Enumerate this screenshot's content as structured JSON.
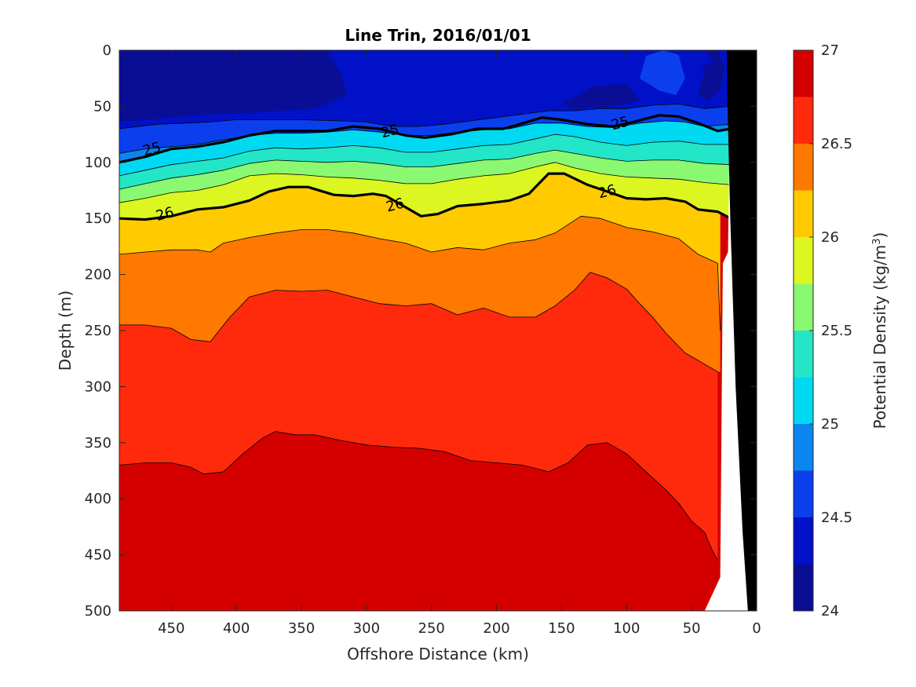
{
  "chart_data": {
    "type": "contourf",
    "title": "Line Trin, 2016/01/01",
    "xlabel": "Offshore Distance (km)",
    "ylabel": "Depth (m)",
    "colorbar_label": "Potential Density (kg/m3)",
    "x_reversed": true,
    "xlim": [
      490,
      0
    ],
    "ylim": [
      0,
      500
    ],
    "y_reversed": true,
    "xticks": [
      450,
      400,
      350,
      300,
      250,
      200,
      150,
      100,
      50,
      0
    ],
    "yticks": [
      0,
      50,
      100,
      150,
      200,
      250,
      300,
      350,
      400,
      450,
      500
    ],
    "colorbar_range": [
      24,
      27
    ],
    "colorbar_ticks": [
      24,
      24.5,
      25,
      25.5,
      26,
      26.5,
      27
    ],
    "levels": [
      24,
      24.25,
      24.5,
      24.75,
      25,
      25.25,
      25.5,
      25.75,
      26,
      26.25,
      26.5,
      26.75,
      27
    ],
    "level_colors": [
      "#0a0e94",
      "#0011c7",
      "#0b3fee",
      "#0a86ee",
      "#00d9f2",
      "#22e6c7",
      "#8af870",
      "#dcf622",
      "#ffcb00",
      "#ff7800",
      "#ff2a0c",
      "#d40000"
    ],
    "contour_labels": [
      {
        "value": "25",
        "x": 465,
        "y": 88
      },
      {
        "value": "25",
        "x": 282,
        "y": 72
      },
      {
        "value": "25",
        "x": 105,
        "y": 65
      },
      {
        "value": "26",
        "x": 455,
        "y": 146
      },
      {
        "value": "26",
        "x": 278,
        "y": 138
      },
      {
        "value": "26",
        "x": 115,
        "y": 126
      }
    ],
    "isopycnals": {
      "24.5": [
        [
          490,
          70
        ],
        [
          460,
          66
        ],
        [
          440,
          65
        ],
        [
          420,
          64
        ],
        [
          400,
          62
        ],
        [
          380,
          62
        ],
        [
          350,
          62
        ],
        [
          320,
          63
        ],
        [
          300,
          64
        ],
        [
          280,
          68
        ],
        [
          260,
          68
        ],
        [
          240,
          66
        ],
        [
          220,
          63
        ],
        [
          200,
          60
        ],
        [
          180,
          57
        ],
        [
          160,
          54
        ],
        [
          140,
          54
        ],
        [
          120,
          52
        ],
        [
          100,
          52
        ],
        [
          80,
          49
        ],
        [
          60,
          48
        ],
        [
          40,
          52
        ],
        [
          20,
          50
        ]
      ],
      "24.75": [
        [
          490,
          92
        ],
        [
          470,
          88
        ],
        [
          450,
          86
        ],
        [
          430,
          84
        ],
        [
          410,
          80
        ],
        [
          390,
          76
        ],
        [
          370,
          74
        ],
        [
          350,
          74
        ],
        [
          330,
          73
        ],
        [
          310,
          71
        ],
        [
          290,
          73
        ],
        [
          270,
          76
        ],
        [
          250,
          76
        ],
        [
          230,
          73
        ],
        [
          210,
          71
        ],
        [
          190,
          70
        ],
        [
          170,
          65
        ],
        [
          150,
          65
        ],
        [
          130,
          68
        ],
        [
          110,
          69
        ],
        [
          90,
          65
        ],
        [
          70,
          63
        ],
        [
          55,
          64
        ],
        [
          40,
          68
        ],
        [
          20,
          66
        ]
      ],
      "25": [
        [
          490,
          100
        ],
        [
          470,
          95
        ],
        [
          450,
          88
        ],
        [
          430,
          86
        ],
        [
          410,
          82
        ],
        [
          390,
          76
        ],
        [
          370,
          72
        ],
        [
          350,
          72
        ],
        [
          330,
          72
        ],
        [
          310,
          68
        ],
        [
          290,
          70
        ],
        [
          270,
          76
        ],
        [
          255,
          78
        ],
        [
          235,
          75
        ],
        [
          215,
          70
        ],
        [
          195,
          70
        ],
        [
          185,
          67
        ],
        [
          165,
          60
        ],
        [
          150,
          62
        ],
        [
          130,
          66
        ],
        [
          110,
          68
        ],
        [
          95,
          64
        ],
        [
          75,
          58
        ],
        [
          60,
          59
        ],
        [
          45,
          65
        ],
        [
          30,
          72
        ],
        [
          20,
          70
        ]
      ],
      "25.25": [
        [
          490,
          112
        ],
        [
          470,
          107
        ],
        [
          450,
          102
        ],
        [
          430,
          99
        ],
        [
          410,
          96
        ],
        [
          390,
          90
        ],
        [
          370,
          87
        ],
        [
          350,
          88
        ],
        [
          330,
          87
        ],
        [
          310,
          85
        ],
        [
          290,
          87
        ],
        [
          270,
          91
        ],
        [
          250,
          91
        ],
        [
          230,
          88
        ],
        [
          210,
          85
        ],
        [
          190,
          84
        ],
        [
          170,
          79
        ],
        [
          155,
          75
        ],
        [
          140,
          77
        ],
        [
          120,
          82
        ],
        [
          100,
          85
        ],
        [
          80,
          82
        ],
        [
          60,
          81
        ],
        [
          40,
          84
        ],
        [
          20,
          84
        ]
      ],
      "25.5": [
        [
          490,
          124
        ],
        [
          470,
          119
        ],
        [
          450,
          114
        ],
        [
          430,
          111
        ],
        [
          410,
          107
        ],
        [
          390,
          101
        ],
        [
          370,
          98
        ],
        [
          350,
          99
        ],
        [
          330,
          100
        ],
        [
          310,
          99
        ],
        [
          290,
          101
        ],
        [
          270,
          104
        ],
        [
          250,
          104
        ],
        [
          230,
          101
        ],
        [
          210,
          98
        ],
        [
          190,
          97
        ],
        [
          170,
          92
        ],
        [
          155,
          89
        ],
        [
          140,
          92
        ],
        [
          120,
          96
        ],
        [
          100,
          99
        ],
        [
          80,
          98
        ],
        [
          60,
          98
        ],
        [
          40,
          101
        ],
        [
          20,
          102
        ]
      ],
      "25.75": [
        [
          490,
          136
        ],
        [
          470,
          132
        ],
        [
          450,
          127
        ],
        [
          430,
          125
        ],
        [
          410,
          120
        ],
        [
          390,
          112
        ],
        [
          370,
          110
        ],
        [
          350,
          111
        ],
        [
          330,
          113
        ],
        [
          310,
          114
        ],
        [
          290,
          116
        ],
        [
          270,
          119
        ],
        [
          250,
          119
        ],
        [
          230,
          115
        ],
        [
          210,
          112
        ],
        [
          190,
          110
        ],
        [
          170,
          104
        ],
        [
          155,
          100
        ],
        [
          140,
          105
        ],
        [
          120,
          110
        ],
        [
          100,
          113
        ],
        [
          80,
          114
        ],
        [
          60,
          115
        ],
        [
          40,
          118
        ],
        [
          20,
          120
        ]
      ],
      "26": [
        [
          490,
          150
        ],
        [
          470,
          151
        ],
        [
          450,
          148
        ],
        [
          430,
          142
        ],
        [
          410,
          140
        ],
        [
          390,
          134
        ],
        [
          375,
          126
        ],
        [
          360,
          122
        ],
        [
          345,
          122
        ],
        [
          325,
          129
        ],
        [
          310,
          130
        ],
        [
          295,
          128
        ],
        [
          285,
          130
        ],
        [
          270,
          140
        ],
        [
          258,
          148
        ],
        [
          245,
          146
        ],
        [
          230,
          139
        ],
        [
          210,
          137
        ],
        [
          190,
          134
        ],
        [
          175,
          128
        ],
        [
          160,
          110
        ],
        [
          148,
          110
        ],
        [
          130,
          120
        ],
        [
          115,
          126
        ],
        [
          100,
          132
        ],
        [
          85,
          133
        ],
        [
          70,
          132
        ],
        [
          55,
          135
        ],
        [
          45,
          142
        ],
        [
          30,
          144
        ],
        [
          20,
          150
        ]
      ],
      "26.25": [
        [
          490,
          182
        ],
        [
          470,
          180
        ],
        [
          450,
          178
        ],
        [
          430,
          178
        ],
        [
          420,
          180
        ],
        [
          410,
          172
        ],
        [
          390,
          167
        ],
        [
          370,
          163
        ],
        [
          350,
          160
        ],
        [
          330,
          160
        ],
        [
          310,
          163
        ],
        [
          290,
          168
        ],
        [
          270,
          172
        ],
        [
          250,
          180
        ],
        [
          230,
          176
        ],
        [
          210,
          178
        ],
        [
          190,
          172
        ],
        [
          170,
          169
        ],
        [
          155,
          163
        ],
        [
          135,
          148
        ],
        [
          120,
          150
        ],
        [
          100,
          158
        ],
        [
          80,
          162
        ],
        [
          60,
          168
        ],
        [
          45,
          182
        ],
        [
          30,
          190
        ],
        [
          28,
          250
        ]
      ],
      "26.5": [
        [
          490,
          245
        ],
        [
          470,
          245
        ],
        [
          450,
          248
        ],
        [
          435,
          258
        ],
        [
          420,
          260
        ],
        [
          405,
          238
        ],
        [
          390,
          220
        ],
        [
          370,
          214
        ],
        [
          350,
          215
        ],
        [
          330,
          214
        ],
        [
          310,
          220
        ],
        [
          290,
          226
        ],
        [
          270,
          228
        ],
        [
          250,
          226
        ],
        [
          230,
          236
        ],
        [
          210,
          230
        ],
        [
          190,
          238
        ],
        [
          170,
          238
        ],
        [
          155,
          228
        ],
        [
          140,
          214
        ],
        [
          128,
          198
        ],
        [
          115,
          203
        ],
        [
          100,
          213
        ],
        [
          90,
          226
        ],
        [
          80,
          238
        ],
        [
          70,
          252
        ],
        [
          55,
          270
        ],
        [
          40,
          280
        ],
        [
          28,
          288
        ]
      ],
      "26.75": [
        [
          490,
          370
        ],
        [
          470,
          368
        ],
        [
          450,
          368
        ],
        [
          435,
          372
        ],
        [
          425,
          378
        ],
        [
          410,
          376
        ],
        [
          395,
          360
        ],
        [
          380,
          346
        ],
        [
          370,
          340
        ],
        [
          355,
          343
        ],
        [
          340,
          343
        ],
        [
          320,
          348
        ],
        [
          300,
          352
        ],
        [
          280,
          354
        ],
        [
          260,
          355
        ],
        [
          240,
          358
        ],
        [
          220,
          366
        ],
        [
          200,
          368
        ],
        [
          180,
          370
        ],
        [
          160,
          376
        ],
        [
          145,
          368
        ],
        [
          130,
          352
        ],
        [
          115,
          350
        ],
        [
          100,
          360
        ],
        [
          85,
          376
        ],
        [
          70,
          392
        ],
        [
          60,
          404
        ],
        [
          50,
          420
        ],
        [
          40,
          430
        ],
        [
          35,
          444
        ],
        [
          30,
          455
        ]
      ]
    },
    "coastline": [
      [
        25,
        500
      ],
      [
        40,
        430
      ],
      [
        60,
        300
      ],
      [
        75,
        150
      ],
      [
        83,
        50
      ],
      [
        85,
        0
      ]
    ]
  }
}
